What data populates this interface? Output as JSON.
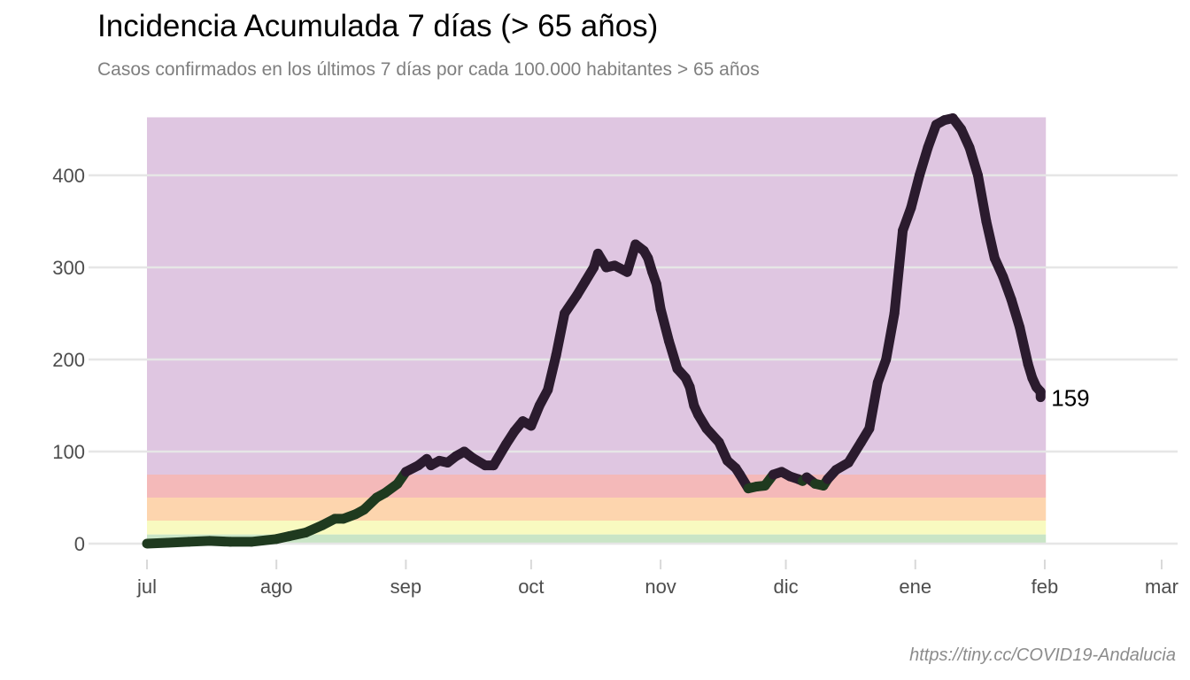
{
  "chart_data": {
    "type": "line",
    "title": "Incidencia Acumulada 7 días (> 65 años)",
    "subtitle": "Casos confirmados en los últimos 7 días por cada 100.000 habitantes > 65 años",
    "caption": "https://tiny.cc/COVID19-Andalucia",
    "xlabel": "",
    "ylabel": "",
    "x_tick_labels": [
      "jul",
      "ago",
      "sep",
      "oct",
      "nov",
      "dic",
      "ene",
      "feb",
      "mar"
    ],
    "x_tick_days": [
      0,
      31,
      62,
      92,
      123,
      153,
      184,
      215,
      243
    ],
    "xlim_days": [
      0,
      243
    ],
    "y_ticks": [
      0,
      100,
      200,
      300,
      400
    ],
    "ylim": [
      -20,
      465
    ],
    "grid": true,
    "end_label": "159",
    "bands": [
      {
        "from": 0,
        "to": 10,
        "color": "#c9e5c6"
      },
      {
        "from": 10,
        "to": 25,
        "color": "#f8fac0"
      },
      {
        "from": 25,
        "to": 50,
        "color": "#fdd5ae"
      },
      {
        "from": 50,
        "to": 75,
        "color": "#f4b9b9"
      },
      {
        "from": 75,
        "to": 463,
        "color": "#dfc6e1"
      }
    ],
    "series": [
      {
        "color_low": "#1f3a1f",
        "color_high": "#2b1b2e",
        "days": [
          0,
          5,
          10,
          15,
          20,
          25,
          31,
          34,
          38,
          42,
          45,
          47,
          50,
          52,
          55,
          57,
          60,
          62,
          65,
          67,
          68,
          70,
          72,
          74,
          76,
          78,
          81,
          83,
          86,
          88,
          90,
          92,
          94,
          96,
          98,
          100,
          103,
          105,
          107,
          108,
          110,
          112,
          115,
          117,
          119,
          120,
          121,
          122,
          123,
          125,
          127,
          129,
          130,
          131,
          132,
          134,
          137,
          139,
          141,
          142,
          144,
          146,
          148,
          150,
          152,
          154,
          156,
          157,
          158,
          160,
          162,
          163,
          165,
          168,
          171,
          173,
          175,
          177,
          179,
          181,
          183,
          185,
          187,
          189,
          191,
          193,
          195,
          197,
          199,
          201,
          203,
          205,
          207,
          209,
          211,
          212,
          213,
          214,
          215,
          217,
          219,
          221,
          223,
          225,
          227
        ],
        "values": [
          0,
          1,
          2,
          3,
          2,
          2,
          5,
          8,
          12,
          20,
          27,
          27,
          32,
          37,
          50,
          55,
          65,
          78,
          85,
          92,
          85,
          90,
          88,
          95,
          100,
          93,
          85,
          85,
          108,
          122,
          133,
          128,
          150,
          167,
          205,
          250,
          270,
          285,
          300,
          315,
          300,
          302,
          295,
          325,
          318,
          310,
          295,
          282,
          255,
          220,
          190,
          180,
          170,
          150,
          140,
          125,
          110,
          90,
          82,
          75,
          60,
          62,
          63,
          75,
          78,
          73,
          70,
          68,
          72,
          65,
          63,
          70,
          80,
          88,
          110,
          125,
          175,
          200,
          250,
          340,
          365,
          400,
          430,
          455,
          460,
          462,
          450,
          430,
          400,
          350,
          310,
          290,
          265,
          235,
          195,
          180,
          170,
          165,
          159,
          159,
          159,
          159,
          159,
          159,
          159
        ]
      }
    ]
  }
}
